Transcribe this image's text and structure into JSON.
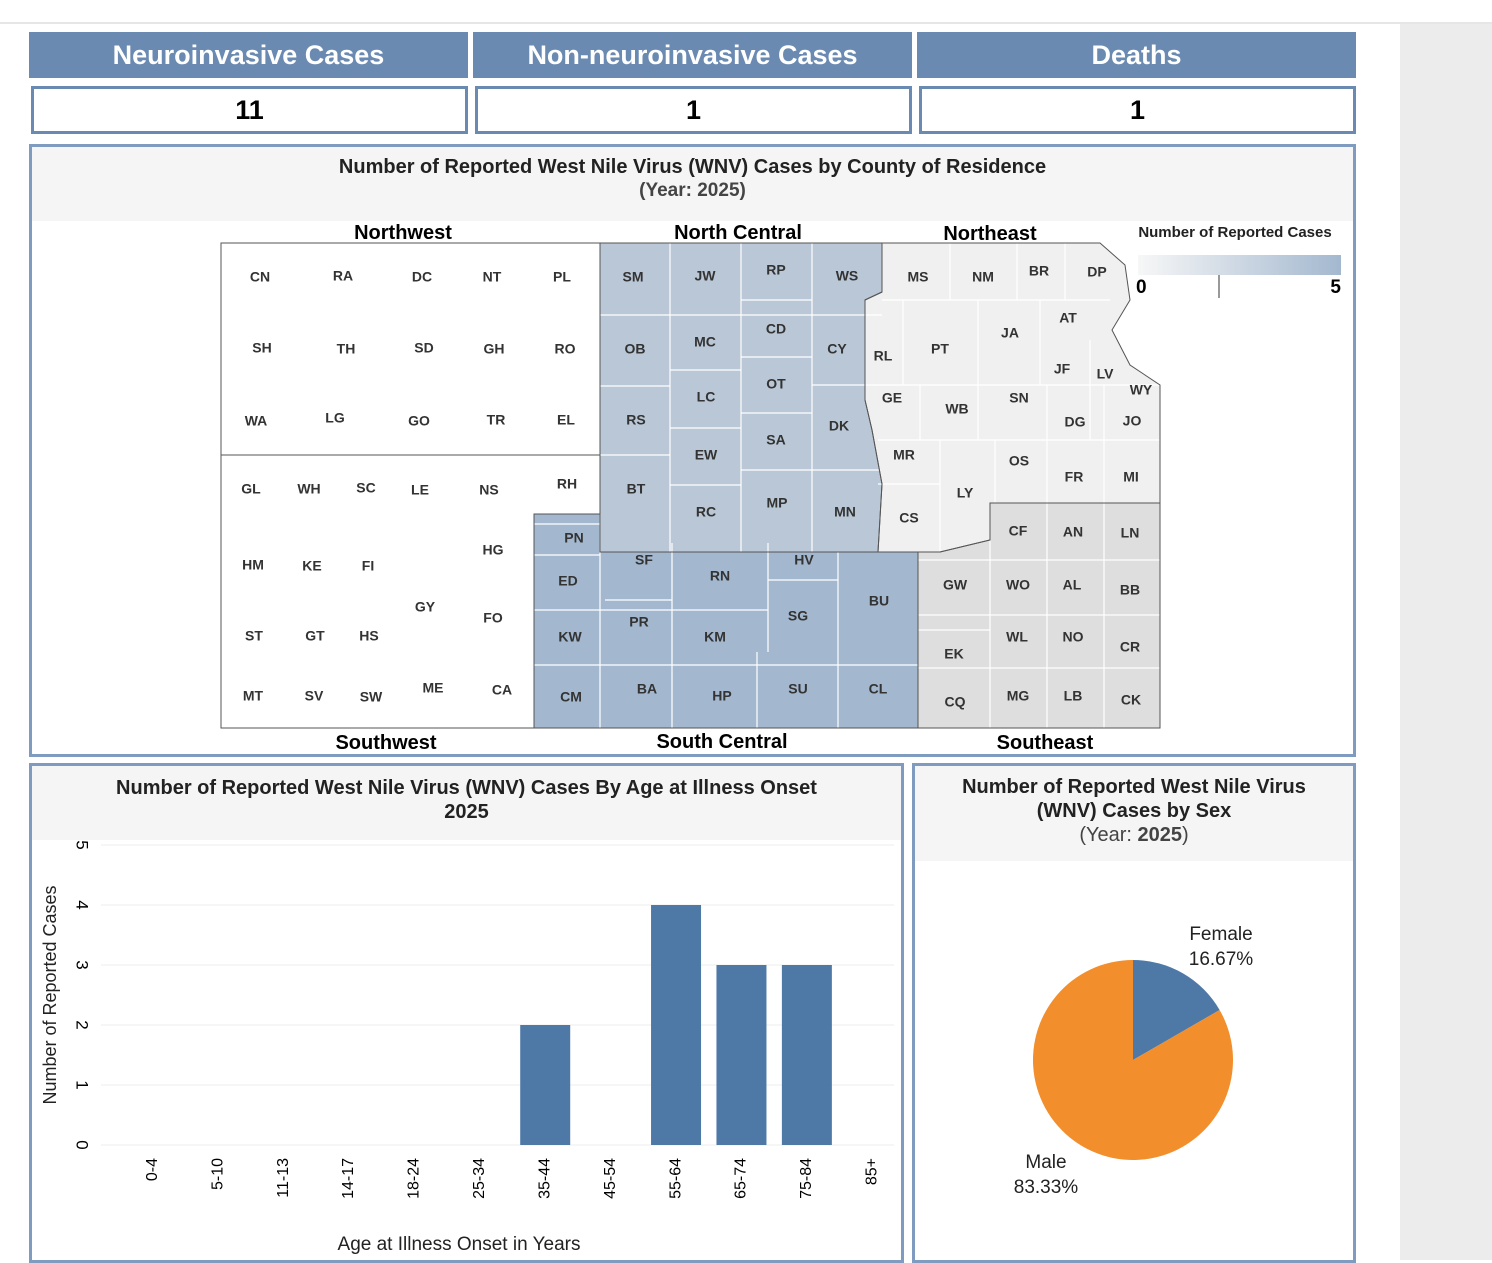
{
  "kpis": [
    {
      "label": "Neuroinvasive Cases",
      "value": "11"
    },
    {
      "label": "Non-neuroinvasive Cases",
      "value": "1"
    },
    {
      "label": "Deaths",
      "value": "1"
    }
  ],
  "map": {
    "title": "Number of Reported West Nile Virus (WNV) Cases by County of Residence",
    "subtitle": "(Year: 2025)",
    "legend_title": "Number of Reported Cases",
    "legend_min": "0",
    "legend_max": "5",
    "regions": {
      "northwest": "Northwest",
      "north_central": "North Central",
      "northeast": "Northeast",
      "southwest": "Southwest",
      "south_central": "South Central",
      "southeast": "Southeast"
    },
    "colors": {
      "nw": "#ffffff",
      "sw": "#ffffff",
      "nc": "#b9c7d6",
      "sc": "#a3b8cf",
      "ne": "#f0f0f0",
      "se": "#dedede",
      "border": "#555555"
    },
    "counties": {
      "nw": [
        "CN",
        "RA",
        "DC",
        "NT",
        "PL",
        "SH",
        "TH",
        "SD",
        "GH",
        "RO",
        "WA",
        "LG",
        "GO",
        "TR",
        "EL"
      ],
      "sw": [
        "GL",
        "WH",
        "SC",
        "LE",
        "NS",
        "RH",
        "HM",
        "KE",
        "FI",
        "HG",
        "GY",
        "FO",
        "ST",
        "GT",
        "HS",
        "MT",
        "SV",
        "SW",
        "ME",
        "CA"
      ],
      "nc": [
        "SM",
        "JW",
        "RP",
        "WS",
        "OB",
        "MC",
        "CD",
        "CY",
        "LC",
        "OT",
        "RS",
        "SA",
        "DK",
        "EW",
        "BT",
        "MP",
        "RC",
        "MN"
      ],
      "sc": [
        "PN",
        "SF",
        "ED",
        "RN",
        "HV",
        "BU",
        "KW",
        "PR",
        "KM",
        "SG",
        "CM",
        "BA",
        "HP",
        "SU",
        "CL"
      ],
      "ne": [
        "MS",
        "NM",
        "BR",
        "DP",
        "AT",
        "JA",
        "PT",
        "RL",
        "JF",
        "LV",
        "WY",
        "GE",
        "WB",
        "SN",
        "DG",
        "JO",
        "MR",
        "OS",
        "FR",
        "MI",
        "LY",
        "CS"
      ],
      "se": [
        "CF",
        "AN",
        "LN",
        "GW",
        "WO",
        "AL",
        "BB",
        "WL",
        "NO",
        "CR",
        "EK",
        "CQ",
        "MG",
        "LB",
        "CK"
      ]
    }
  },
  "age_chart": {
    "title": "Number of Reported West Nile Virus (WNV) Cases By Age at Illness Onset",
    "subtitle": "2025",
    "bar_color": "#4e79a7"
  },
  "sex_chart": {
    "title_line1": "Number of Reported West Nile Virus",
    "title_line2": "(WNV) Cases by Sex",
    "year_prefix": "(Year: ",
    "year": "2025",
    "year_suffix": ")",
    "female_label": "Female",
    "female_pct": "16.67%",
    "male_label": "Male",
    "male_pct": "83.33%",
    "female_color": "#4e79a7",
    "male_color": "#f28e2b"
  },
  "chart_data": [
    {
      "type": "bar",
      "title": "Number of Reported West Nile Virus (WNV) Cases By Age at Illness Onset 2025",
      "categories": [
        "0-4",
        "5-10",
        "11-13",
        "14-17",
        "18-24",
        "25-34",
        "35-44",
        "45-54",
        "55-64",
        "65-74",
        "75-84",
        "85+"
      ],
      "values": [
        0,
        0,
        0,
        0,
        0,
        0,
        2,
        0,
        4,
        3,
        3,
        0
      ],
      "xlabel": "Age at Illness Onset in Years",
      "ylabel": "Number of Reported Cases",
      "ylim": [
        0,
        5
      ],
      "yticks": [
        "0",
        "1",
        "2",
        "3",
        "4",
        "5"
      ]
    },
    {
      "type": "pie",
      "title": "Number of Reported West Nile Virus (WNV) Cases by Sex (Year: 2025)",
      "labels": [
        "Female",
        "Male"
      ],
      "values": [
        16.67,
        83.33
      ]
    }
  ]
}
